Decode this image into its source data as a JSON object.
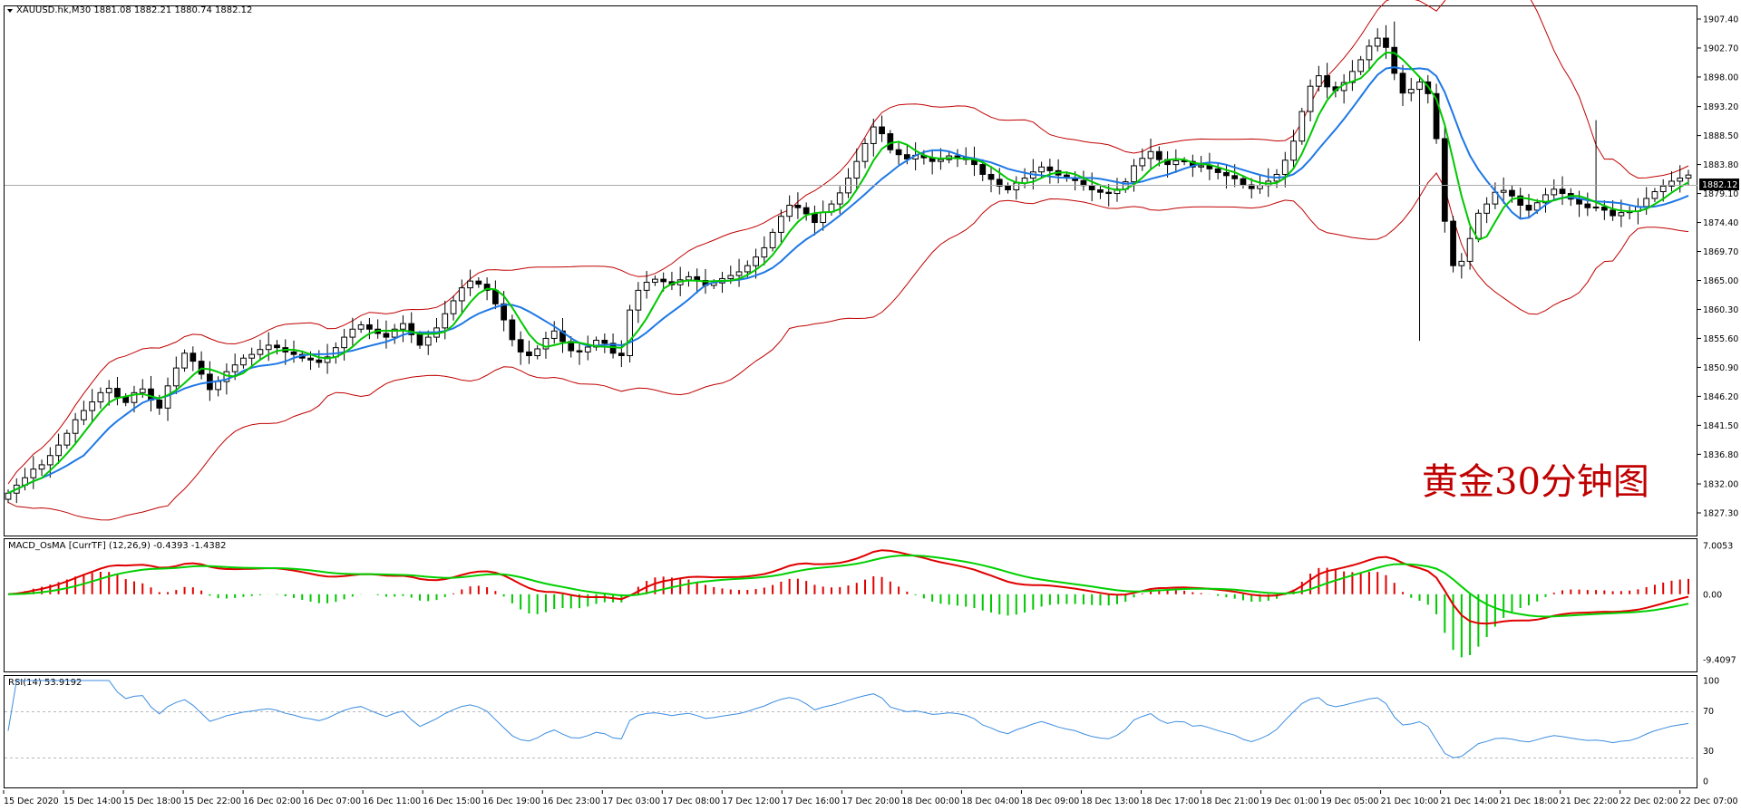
{
  "window": {
    "symbol_header": "XAUUSD.hk,M30  1881.08 1882.21 1880.74 1882.12",
    "menu_glyph": "▼",
    "watermark": "黄金30分钟图"
  },
  "colors": {
    "bull_candle_fill": "#ffffff",
    "bear_candle_fill": "#000000",
    "candle_outline": "#000000",
    "ma_fast": "#00c800",
    "ma_slow": "#1e78e6",
    "bollinger": "#c00000",
    "price_line": "#a0a0a0",
    "price_badge": "#000000",
    "macd_line": "#e00000",
    "signal_line": "#00d000",
    "osma_pos": "#e00000",
    "osma_neg": "#00c800",
    "rsi_line": "#3c8de0",
    "watermark": "#c00000"
  },
  "price_axis": {
    "labels": [
      "1907.40",
      "1902.70",
      "1898.00",
      "1893.20",
      "1888.50",
      "1883.80",
      "1879.10",
      "1874.40",
      "1869.70",
      "1865.00",
      "1860.30",
      "1855.60",
      "1850.90",
      "1846.20",
      "1841.50",
      "1836.80",
      "1832.00",
      "1827.30"
    ],
    "current_price": "1882.12"
  },
  "time_axis": [
    "15 Dec 2020",
    "15 Dec 14:00",
    "15 Dec 18:00",
    "15 Dec 22:00",
    "16 Dec 02:00",
    "16 Dec 07:00",
    "16 Dec 11:00",
    "16 Dec 15:00",
    "16 Dec 19:00",
    "16 Dec 23:00",
    "17 Dec 03:00",
    "17 Dec 08:00",
    "17 Dec 12:00",
    "17 Dec 16:00",
    "17 Dec 20:00",
    "18 Dec 00:00",
    "18 Dec 04:00",
    "18 Dec 09:00",
    "18 Dec 13:00",
    "18 Dec 17:00",
    "18 Dec 21:00",
    "19 Dec 01:00",
    "19 Dec 05:00",
    "21 Dec 10:00",
    "21 Dec 14:00",
    "21 Dec 18:00",
    "21 Dec 22:00",
    "22 Dec 02:00",
    "22 Dec 07:00"
  ],
  "macd_pane": {
    "header": "MACD_OsMA [CurrTF] (12,26,9) -0.4393 -1.4382",
    "axis": [
      "7.0053",
      "0.00",
      "-9.4097"
    ]
  },
  "rsi_pane": {
    "header": "RSI(14) 53.9192",
    "axis": [
      "100",
      "70",
      "30",
      "0"
    ]
  },
  "chart_data": {
    "type": "candlestick",
    "series_close": [
      1830.5,
      1831.8,
      1833.0,
      1834.4,
      1835.1,
      1836.6,
      1838.3,
      1840.2,
      1842.4,
      1843.9,
      1845.3,
      1846.8,
      1847.5,
      1846.1,
      1845.2,
      1846.8,
      1847.4,
      1845.6,
      1844.3,
      1847.9,
      1850.8,
      1853.2,
      1851.9,
      1849.8,
      1847.3,
      1848.6,
      1850.2,
      1851.3,
      1852.4,
      1853.0,
      1853.8,
      1854.5,
      1854.1,
      1853.4,
      1853.0,
      1852.4,
      1852.1,
      1851.7,
      1852.6,
      1854.1,
      1855.8,
      1857.1,
      1857.8,
      1857.1,
      1856.4,
      1855.8,
      1857.1,
      1858.0,
      1856.2,
      1854.5,
      1855.8,
      1857.3,
      1859.6,
      1861.7,
      1863.8,
      1864.9,
      1864.4,
      1863.4,
      1861.2,
      1858.6,
      1855.4,
      1853.4,
      1852.8,
      1853.9,
      1855.6,
      1856.8,
      1855.1,
      1853.6,
      1853.4,
      1854.2,
      1855.3,
      1854.8,
      1853.2,
      1852.8,
      1860.2,
      1863.4,
      1864.7,
      1865.2,
      1864.8,
      1864.3,
      1865.1,
      1865.6,
      1865.0,
      1864.2,
      1864.6,
      1865.3,
      1865.8,
      1866.4,
      1867.4,
      1868.8,
      1870.3,
      1872.8,
      1875.4,
      1877.2,
      1876.8,
      1875.8,
      1874.4,
      1876.1,
      1877.4,
      1879.2,
      1881.6,
      1884.3,
      1887.2,
      1889.9,
      1888.8,
      1886.2,
      1885.4,
      1884.7,
      1885.3,
      1884.9,
      1884.3,
      1884.6,
      1885.2,
      1885.0,
      1884.6,
      1883.8,
      1882.2,
      1881.4,
      1880.3,
      1879.7,
      1880.8,
      1881.6,
      1882.6,
      1883.4,
      1882.8,
      1882.1,
      1881.6,
      1881.2,
      1880.4,
      1879.7,
      1879.3,
      1879.1,
      1879.8,
      1881.0,
      1883.6,
      1884.8,
      1885.9,
      1884.6,
      1883.8,
      1884.4,
      1884.3,
      1883.4,
      1883.6,
      1883.1,
      1882.5,
      1882.0,
      1881.5,
      1880.5,
      1879.9,
      1880.4,
      1881.1,
      1882.2,
      1884.5,
      1887.6,
      1892.4,
      1896.5,
      1898.2,
      1896.4,
      1895.8,
      1897.1,
      1898.9,
      1900.8,
      1903.0,
      1904.3,
      1902.8,
      1898.6,
      1895.4,
      1896.0,
      1897.2,
      1895.3,
      1888.0,
      1874.6,
      1867.4,
      1868.1,
      1871.8,
      1875.9,
      1877.4,
      1879.3,
      1879.6,
      1878.7,
      1877.2,
      1876.4,
      1877.6,
      1878.9,
      1879.8,
      1879.1,
      1878.2,
      1877.4,
      1876.8,
      1876.9,
      1876.4,
      1875.5,
      1876.0,
      1876.2,
      1877.0,
      1878.3,
      1879.4,
      1880.3,
      1881.1,
      1881.6,
      1882.1
    ]
  }
}
